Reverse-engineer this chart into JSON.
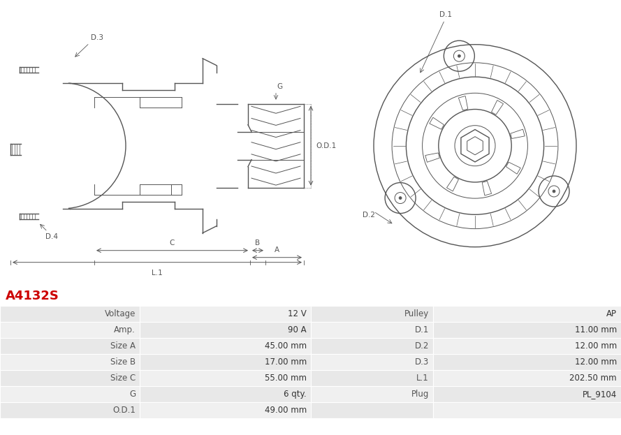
{
  "title": "A4132S",
  "title_color": "#cc0000",
  "title_fontsize": 13,
  "background_color": "#ffffff",
  "table_row_bg_odd": "#e8e8e8",
  "table_row_bg_even": "#f0f0f0",
  "left_table": [
    [
      "Voltage",
      "12 V"
    ],
    [
      "Amp.",
      "90 A"
    ],
    [
      "Size A",
      "45.00 mm"
    ],
    [
      "Size B",
      "17.00 mm"
    ],
    [
      "Size C",
      "55.00 mm"
    ],
    [
      "G",
      "6 qty."
    ],
    [
      "O.D.1",
      "49.00 mm"
    ]
  ],
  "right_table": [
    [
      "Pulley",
      "AP"
    ],
    [
      "D.1",
      "11.00 mm"
    ],
    [
      "D.2",
      "12.00 mm"
    ],
    [
      "D.3",
      "12.00 mm"
    ],
    [
      "L.1",
      "202.50 mm"
    ],
    [
      "Plug",
      "PL_9104"
    ],
    [
      "",
      ""
    ]
  ],
  "line_color": "#555555",
  "label_color": "#555555",
  "dim_color": "#555555"
}
